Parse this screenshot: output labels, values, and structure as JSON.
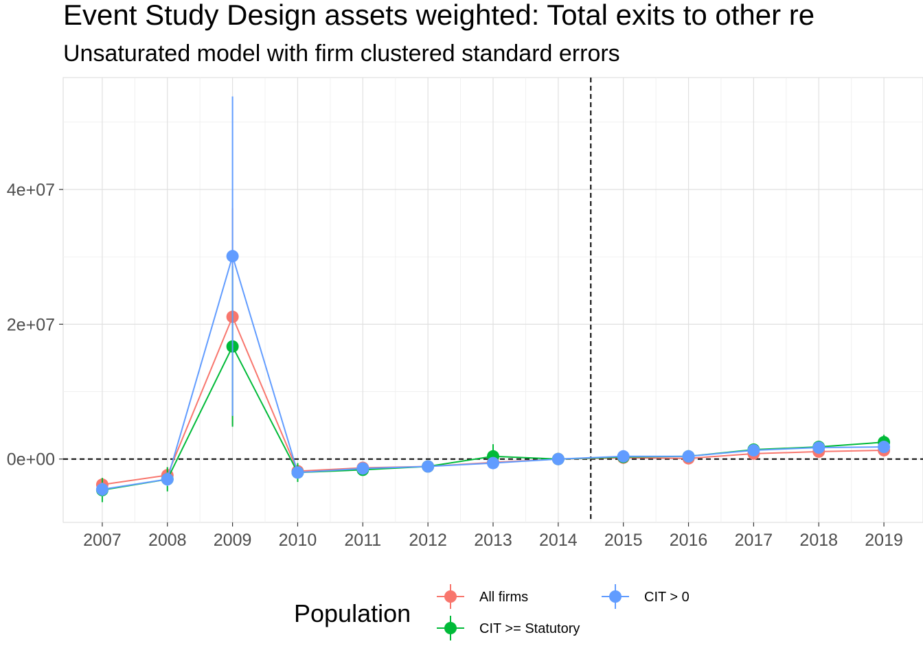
{
  "chart_data": {
    "type": "line",
    "title": "Event Study Design assets weighted: Total exits to other re",
    "subtitle": "Unsaturated model with firm clustered standard errors",
    "xlabel": "",
    "ylabel": "",
    "x": [
      2007,
      2008,
      2009,
      2010,
      2011,
      2012,
      2013,
      2014,
      2015,
      2016,
      2017,
      2018,
      2019
    ],
    "x_tick_labels": [
      "2007",
      "2008",
      "2009",
      "2010",
      "2011",
      "2012",
      "2013",
      "2014",
      "2015",
      "2016",
      "2017",
      "2018",
      "2019"
    ],
    "y_ticks": [
      0,
      20000000,
      40000000
    ],
    "y_tick_labels": [
      "0e+00",
      "2e+07",
      "4e+07"
    ],
    "xlim": [
      2006.4,
      2019.6
    ],
    "ylim": [
      -9400000,
      56600000
    ],
    "grid": true,
    "vline_x": 2014.5,
    "hline_y": 0,
    "legend": {
      "title": "Population",
      "position": "bottom"
    },
    "series": [
      {
        "name": "All firms",
        "color": "#F8766D",
        "values": [
          -3800000,
          -2400000,
          21100000,
          -1800000,
          -1300000,
          -1100000,
          -500000,
          0,
          200000,
          100000,
          800000,
          1100000,
          1300000
        ],
        "lower": [
          -4800000,
          -3600000,
          5000000,
          -2800000,
          -1900000,
          -1500000,
          -1200000,
          0,
          -200000,
          -300000,
          300000,
          500000,
          600000
        ],
        "upper": [
          -2800000,
          -1200000,
          37200000,
          -800000,
          -700000,
          -700000,
          200000,
          0,
          600000,
          500000,
          1300000,
          1700000,
          2000000
        ]
      },
      {
        "name": "CIT >= Statutory",
        "color": "#00BA38",
        "values": [
          -4600000,
          -3000000,
          16700000,
          -2000000,
          -1600000,
          -1100000,
          400000,
          0,
          300000,
          400000,
          1400000,
          1800000,
          2500000
        ],
        "lower": [
          -6400000,
          -4800000,
          4800000,
          -3400000,
          -2400000,
          -1600000,
          -1400000,
          0,
          -200000,
          -100000,
          800000,
          900000,
          1400000
        ],
        "upper": [
          -2800000,
          -1200000,
          28600000,
          -600000,
          -800000,
          -600000,
          2200000,
          0,
          800000,
          900000,
          2000000,
          2700000,
          3600000
        ]
      },
      {
        "name": "CIT > 0",
        "color": "#619CFF",
        "values": [
          -4500000,
          -3000000,
          30100000,
          -2000000,
          -1400000,
          -1100000,
          -600000,
          0,
          400000,
          400000,
          1300000,
          1700000,
          1800000
        ],
        "lower": [
          -5500000,
          -4000000,
          6400000,
          -2800000,
          -2000000,
          -1500000,
          -1200000,
          0,
          0,
          0,
          800000,
          1100000,
          1100000
        ],
        "upper": [
          -3500000,
          -2000000,
          53800000,
          -1200000,
          -800000,
          -700000,
          0,
          0,
          800000,
          800000,
          1800000,
          2300000,
          2500000
        ]
      }
    ]
  }
}
